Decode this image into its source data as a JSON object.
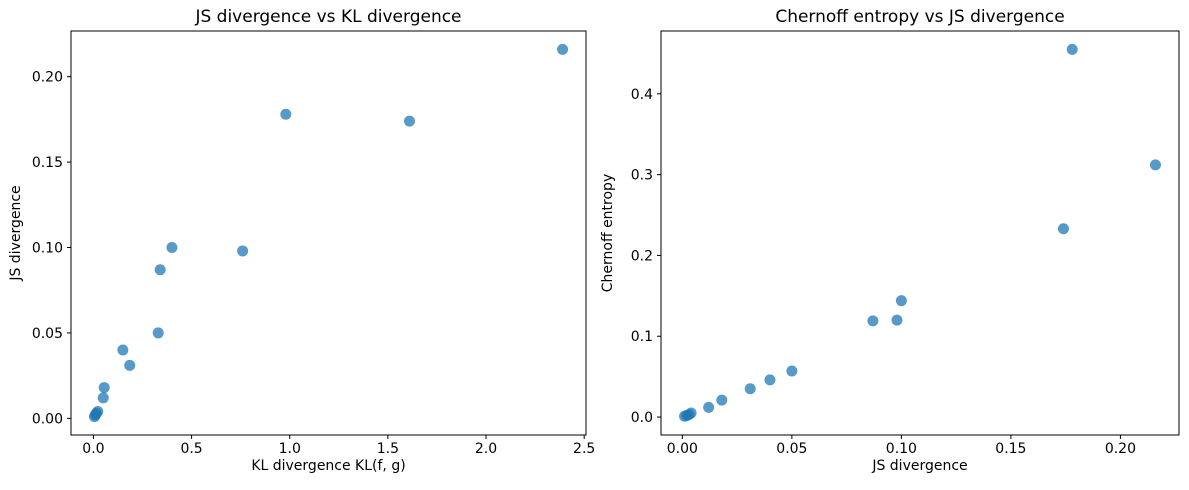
{
  "figure": {
    "background": "#ffffff",
    "n_points": 15
  },
  "chart_data": [
    {
      "type": "scatter",
      "title": "JS divergence vs KL divergence",
      "xlabel": "KL divergence KL(f, g)",
      "ylabel": "JS divergence",
      "x": [
        0.005,
        0.01,
        0.015,
        0.022,
        0.05,
        0.055,
        0.15,
        0.185,
        0.33,
        0.34,
        0.4,
        0.76,
        0.98,
        1.61,
        2.39
      ],
      "y": [
        0.001,
        0.002,
        0.003,
        0.004,
        0.012,
        0.018,
        0.04,
        0.031,
        0.05,
        0.087,
        0.1,
        0.098,
        0.178,
        0.174,
        0.216
      ],
      "xlim": [
        -0.1143,
        2.5093
      ],
      "ylim": [
        -0.00975,
        0.22675
      ],
      "xticks": [
        0.0,
        0.5,
        1.0,
        1.5,
        2.0,
        2.5
      ],
      "xtick_labels": [
        "0.0",
        "0.5",
        "1.0",
        "1.5",
        "2.0",
        "2.5"
      ],
      "yticks": [
        0.0,
        0.05,
        0.1,
        0.15,
        0.2
      ],
      "ytick_labels": [
        "0.00",
        "0.05",
        "0.10",
        "0.15",
        "0.20"
      ],
      "grid": false,
      "legend": null,
      "marker": {
        "color": "#1f77b4",
        "opacity": 0.75,
        "radius_px": 5.5
      }
    },
    {
      "type": "scatter",
      "title": "Chernoff entropy vs JS divergence",
      "xlabel": "JS divergence",
      "ylabel": "Chernoff entropy",
      "x": [
        0.001,
        0.002,
        0.003,
        0.004,
        0.012,
        0.018,
        0.04,
        0.031,
        0.05,
        0.087,
        0.1,
        0.098,
        0.178,
        0.174,
        0.216
      ],
      "y": [
        0.001,
        0.002,
        0.003,
        0.005,
        0.012,
        0.021,
        0.046,
        0.035,
        0.057,
        0.119,
        0.144,
        0.12,
        0.455,
        0.233,
        0.312
      ],
      "xlim": [
        -0.00975,
        0.22675
      ],
      "ylim": [
        -0.0222,
        0.4777
      ],
      "xticks": [
        0.0,
        0.05,
        0.1,
        0.15,
        0.2
      ],
      "xtick_labels": [
        "0.00",
        "0.05",
        "0.10",
        "0.15",
        "0.20"
      ],
      "yticks": [
        0.0,
        0.1,
        0.2,
        0.3,
        0.4
      ],
      "ytick_labels": [
        "0.0",
        "0.1",
        "0.2",
        "0.3",
        "0.4"
      ],
      "grid": false,
      "legend": null,
      "marker": {
        "color": "#1f77b4",
        "opacity": 0.75,
        "radius_px": 5.5
      }
    }
  ]
}
